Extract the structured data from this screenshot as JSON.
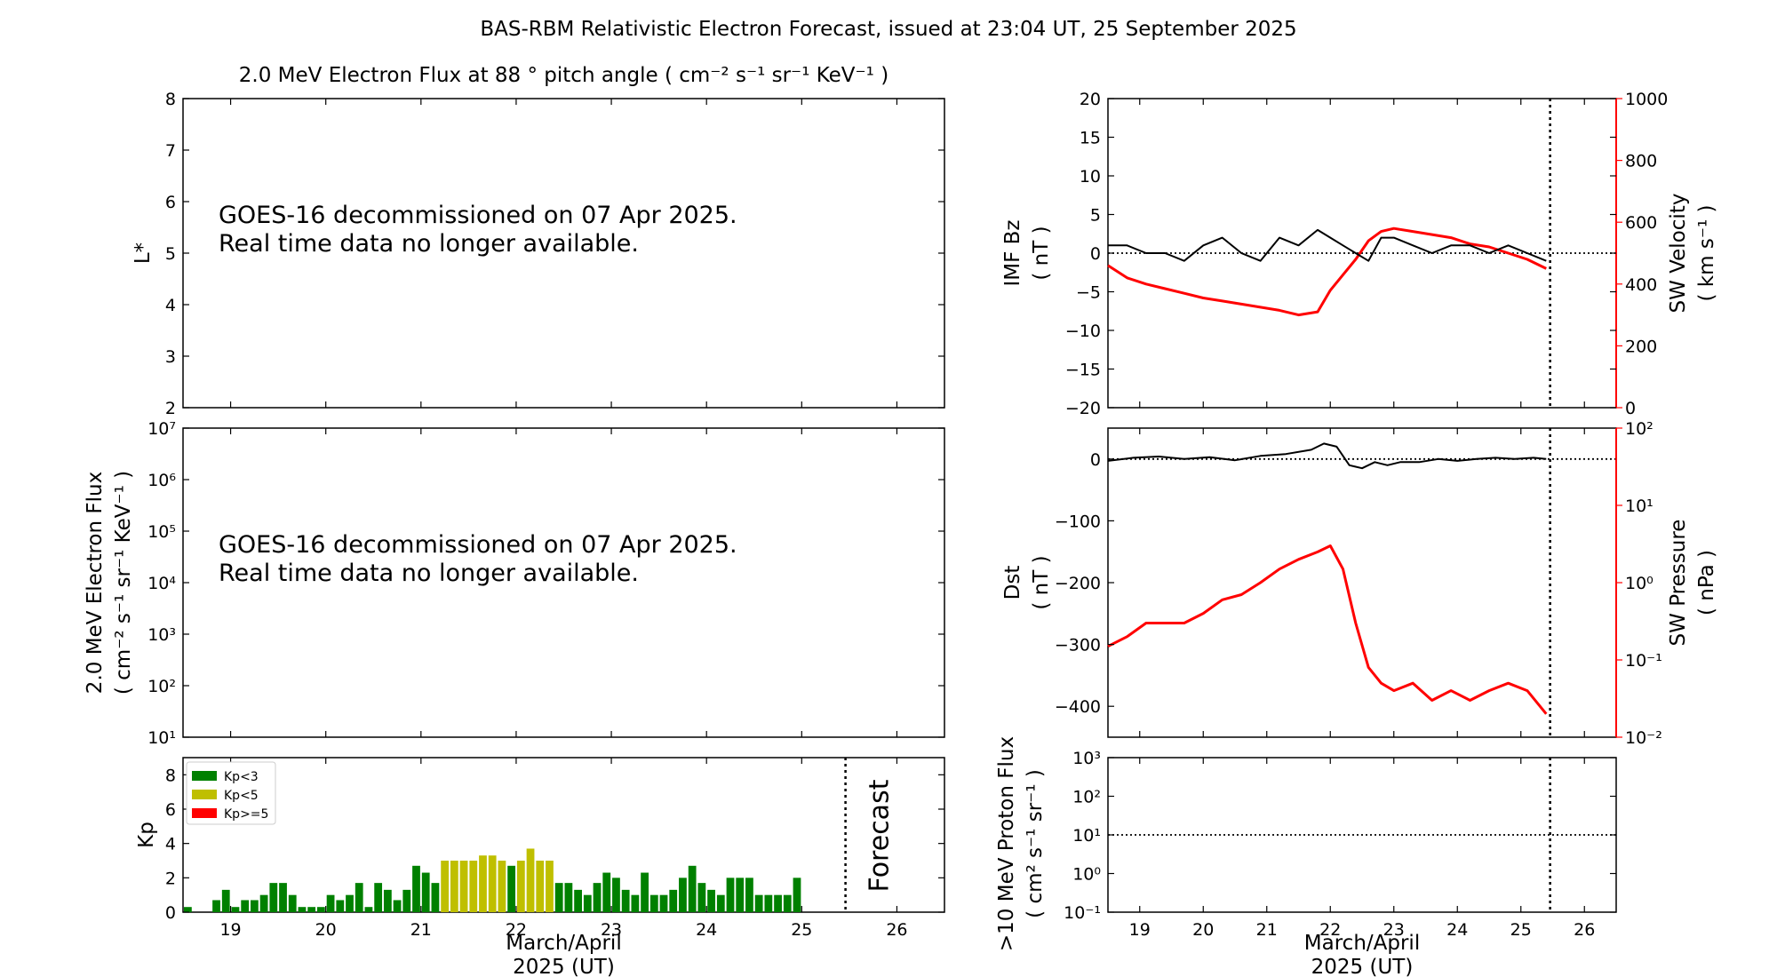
{
  "title": "BAS-RBM Relativistic Electron Forecast, issued at 23:04 UT, 25 September 2025",
  "colors": {
    "black": "#000000",
    "red": "#ff0000",
    "kp_low": "#008000",
    "kp_mid": "#bfbf00",
    "kp_high": "#ff0000",
    "forecast_label": "#c8c8c8"
  },
  "chart_data": [
    {
      "id": "lstar",
      "type": "line",
      "title": "2.0 MeV Electron Flux at 88 ° pitch angle ( cm⁻² s⁻¹ sr⁻¹ KeV⁻¹ )",
      "ylabel": "L*",
      "ylim": [
        2,
        8
      ],
      "yticks": [
        "2",
        "3",
        "4",
        "5",
        "6",
        "7",
        "8"
      ],
      "message": [
        "GOES-16 decommissioned on 07 Apr 2025.",
        "Real time data no longer available."
      ]
    },
    {
      "id": "eflux",
      "type": "line",
      "ylabel": [
        "2.0 MeV Electron Flux",
        "( cm⁻² s⁻¹ sr⁻¹ KeV⁻¹ )"
      ],
      "yscale": "log",
      "ylim": [
        10,
        10000000
      ],
      "yticks": [
        "10¹",
        "10²",
        "10³",
        "10⁴",
        "10⁵",
        "10⁶",
        "10⁷"
      ],
      "message": [
        "GOES-16 decommissioned on 07 Apr 2025.",
        "Real time data no longer available."
      ]
    },
    {
      "id": "kp",
      "type": "bar",
      "ylabel": "Kp",
      "ylim": [
        0,
        9
      ],
      "yticks": [
        "0",
        "2",
        "4",
        "6",
        "8"
      ],
      "xlim": [
        18.5,
        26.5
      ],
      "xticks": [
        "19",
        "20",
        "21",
        "22",
        "23",
        "24",
        "25",
        "26"
      ],
      "xlabel": [
        "March/April",
        "2025 (UT)"
      ],
      "forecast_label": "Forecast",
      "forecast_x": 25.46,
      "legend": [
        "Kp<3",
        "Kp<5",
        "Kp>=5"
      ],
      "legend_position": "top-left",
      "bar_width_days": 0.1,
      "start_day": 18.5,
      "values": [
        0.3,
        0,
        0,
        0.7,
        1.3,
        0.3,
        0.7,
        0.7,
        1.0,
        1.7,
        1.7,
        1.0,
        0.3,
        0.3,
        0.3,
        1.0,
        0.7,
        1.0,
        1.7,
        0.3,
        1.7,
        1.3,
        0.7,
        1.3,
        2.7,
        2.3,
        1.7,
        3.0,
        3.0,
        3.0,
        3.0,
        3.3,
        3.3,
        3.0,
        2.7,
        3.0,
        3.7,
        3.0,
        3.0,
        1.7,
        1.7,
        1.3,
        1.0,
        1.7,
        2.3,
        2.0,
        1.3,
        1.0,
        2.3,
        1.0,
        1.0,
        1.3,
        2.0,
        2.7,
        1.7,
        1.3,
        1.0,
        2.0,
        2.0,
        2.0,
        1.0,
        1.0,
        1.0,
        1.0,
        2.0
      ]
    },
    {
      "id": "imf",
      "type": "line",
      "ylabel": [
        "IMF Bz",
        "( nT )"
      ],
      "ylim": [
        -20,
        20
      ],
      "yticks": [
        "−20",
        "−15",
        "−10",
        "−5",
        "0",
        "5",
        "10",
        "15",
        "20"
      ],
      "y2label": [
        "SW Velocity",
        "( km s⁻¹ )"
      ],
      "y2lim": [
        0,
        1000
      ],
      "y2ticks": [
        "0",
        "200",
        "400",
        "600",
        "800",
        "1000"
      ],
      "xlim": [
        18.5,
        26.5
      ],
      "now_x": 25.46,
      "series": [
        {
          "axis": "left",
          "color": "#000000",
          "x": [
            18.5,
            18.8,
            19.1,
            19.4,
            19.7,
            20.0,
            20.3,
            20.6,
            20.9,
            21.2,
            21.5,
            21.8,
            22.0,
            22.2,
            22.4,
            22.6,
            22.8,
            23.0,
            23.3,
            23.6,
            23.9,
            24.2,
            24.5,
            24.8,
            25.1,
            25.4
          ],
          "y": [
            1,
            1,
            0,
            0,
            -1,
            1,
            2,
            0,
            -1,
            2,
            1,
            3,
            2,
            1,
            0,
            -1,
            2,
            2,
            1,
            0,
            1,
            1,
            0,
            1,
            0,
            -1
          ]
        },
        {
          "axis": "right",
          "color": "#ff0000",
          "x": [
            18.5,
            18.8,
            19.1,
            19.4,
            19.7,
            20.0,
            20.3,
            20.6,
            20.9,
            21.2,
            21.5,
            21.8,
            22.0,
            22.2,
            22.4,
            22.6,
            22.8,
            23.0,
            23.3,
            23.6,
            23.9,
            24.2,
            24.5,
            24.8,
            25.1,
            25.4
          ],
          "y": [
            460,
            420,
            400,
            385,
            370,
            355,
            345,
            335,
            325,
            315,
            300,
            310,
            380,
            430,
            480,
            540,
            570,
            580,
            570,
            560,
            550,
            530,
            520,
            500,
            480,
            450
          ]
        }
      ]
    },
    {
      "id": "dst",
      "type": "line",
      "ylabel": [
        "Dst",
        "( nT )"
      ],
      "ylim": [
        -450,
        50
      ],
      "yticks": [
        "0",
        "−100",
        "−200",
        "−300",
        "−400"
      ],
      "y2label": [
        "SW Pressure",
        "( nPa )"
      ],
      "y2scale": "log",
      "y2lim": [
        0.01,
        100
      ],
      "y2ticks": [
        "10⁻²",
        "10⁻¹",
        "10⁰",
        "10¹",
        "10²"
      ],
      "xlim": [
        18.5,
        26.5
      ],
      "now_x": 25.46,
      "series": [
        {
          "axis": "left",
          "color": "#000000",
          "x": [
            18.5,
            18.9,
            19.3,
            19.7,
            20.1,
            20.5,
            20.9,
            21.3,
            21.7,
            21.9,
            22.1,
            22.3,
            22.5,
            22.7,
            22.9,
            23.1,
            23.4,
            23.7,
            24.0,
            24.3,
            24.6,
            24.9,
            25.2,
            25.4
          ],
          "y": [
            -3,
            2,
            4,
            0,
            3,
            -2,
            5,
            8,
            15,
            25,
            20,
            -10,
            -15,
            -5,
            -10,
            -5,
            -5,
            0,
            -3,
            0,
            2,
            0,
            2,
            0
          ]
        },
        {
          "axis": "right",
          "color": "#ff0000",
          "x": [
            18.5,
            18.8,
            19.1,
            19.4,
            19.7,
            20.0,
            20.3,
            20.6,
            20.9,
            21.2,
            21.5,
            21.8,
            22.0,
            22.2,
            22.4,
            22.6,
            22.8,
            23.0,
            23.3,
            23.6,
            23.9,
            24.2,
            24.5,
            24.8,
            25.1,
            25.4
          ],
          "y": [
            0.15,
            0.2,
            0.3,
            0.3,
            0.3,
            0.4,
            0.6,
            0.7,
            1.0,
            1.5,
            2.0,
            2.5,
            3.0,
            1.5,
            0.3,
            0.08,
            0.05,
            0.04,
            0.05,
            0.03,
            0.04,
            0.03,
            0.04,
            0.05,
            0.04,
            0.02
          ]
        }
      ]
    },
    {
      "id": "proton",
      "type": "line",
      "ylabel": [
        ">10 MeV Proton Flux",
        "( cm² s⁻¹ sr⁻¹ )"
      ],
      "yscale": "log",
      "ylim": [
        0.1,
        1000
      ],
      "yticks": [
        "10⁻¹",
        "10⁰",
        "10¹",
        "10²",
        "10³"
      ],
      "xlim": [
        18.5,
        26.5
      ],
      "xticks": [
        "19",
        "20",
        "21",
        "22",
        "23",
        "24",
        "25",
        "26"
      ],
      "xlabel": [
        "March/April",
        "2025 (UT)"
      ],
      "threshold": 10,
      "now_x": 25.46
    }
  ]
}
